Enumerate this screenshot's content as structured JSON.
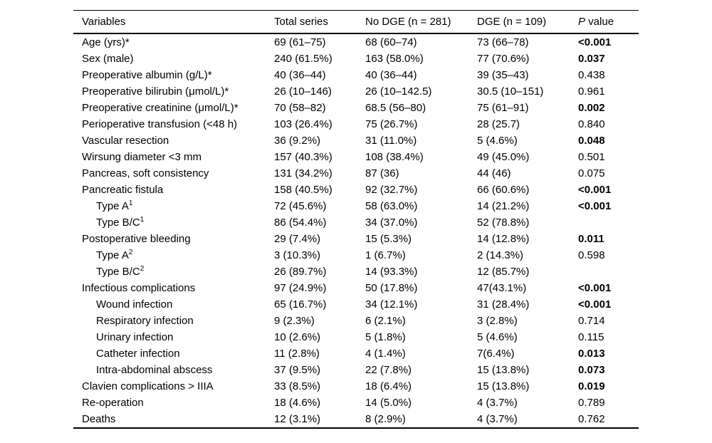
{
  "table": {
    "header": {
      "variables": "Variables",
      "total": "Total series",
      "no_dge": "No DGE (n = 281)",
      "dge": "DGE (n = 109)",
      "p_italic": "P",
      "p_rest": " value"
    },
    "rows": [
      {
        "variable": "Age (yrs)*",
        "sup": "",
        "indent": false,
        "total": "69 (61–75)",
        "no_dge": "68 (60–74)",
        "dge": "73 (66–78)",
        "p": "<0.001",
        "p_bold": true
      },
      {
        "variable": "Sex (male)",
        "sup": "",
        "indent": false,
        "total": "240 (61.5%)",
        "no_dge": "163 (58.0%)",
        "dge": "77 (70.6%)",
        "p": "0.037",
        "p_bold": true
      },
      {
        "variable": "Preoperative albumin (g/L)*",
        "sup": "",
        "indent": false,
        "total": "40 (36–44)",
        "no_dge": "40 (36–44)",
        "dge": "39 (35–43)",
        "p": "0.438",
        "p_bold": false
      },
      {
        "variable": "Preoperative bilirubin (μmol/L)*",
        "sup": "",
        "indent": false,
        "total": "26 (10–146)",
        "no_dge": "26 (10–142.5)",
        "dge": "30.5 (10–151)",
        "p": "0.961",
        "p_bold": false
      },
      {
        "variable": "Preoperative creatinine (μmol/L)*",
        "sup": "",
        "indent": false,
        "total": "70 (58–82)",
        "no_dge": "68.5 (56–80)",
        "dge": "75 (61–91)",
        "p": "0.002",
        "p_bold": true
      },
      {
        "variable": "Perioperative transfusion (<48 h)",
        "sup": "",
        "indent": false,
        "total": "103 (26.4%)",
        "no_dge": "75 (26.7%)",
        "dge": "28 (25.7)",
        "p": "0.840",
        "p_bold": false
      },
      {
        "variable": "Vascular resection",
        "sup": "",
        "indent": false,
        "total": "36 (9.2%)",
        "no_dge": "31 (11.0%)",
        "dge": "5 (4.6%)",
        "p": "0.048",
        "p_bold": true
      },
      {
        "variable": "Wirsung diameter <3 mm",
        "sup": "",
        "indent": false,
        "total": "157 (40.3%)",
        "no_dge": "108 (38.4%)",
        "dge": "49 (45.0%)",
        "p": "0.501",
        "p_bold": false
      },
      {
        "variable": "Pancreas, soft consistency",
        "sup": "",
        "indent": false,
        "total": "131 (34.2%)",
        "no_dge": "87 (36)",
        "dge": "44 (46)",
        "p": "0.075",
        "p_bold": false
      },
      {
        "variable": "Pancreatic fistula",
        "sup": "",
        "indent": false,
        "total": "158 (40.5%)",
        "no_dge": "92 (32.7%)",
        "dge": "66 (60.6%)",
        "p": "<0.001",
        "p_bold": true
      },
      {
        "variable": "Type A",
        "sup": "1",
        "indent": true,
        "total": "72 (45.6%)",
        "no_dge": "58 (63.0%)",
        "dge": "14 (21.2%)",
        "p": "<0.001",
        "p_bold": true
      },
      {
        "variable": "Type B/C",
        "sup": "1",
        "indent": true,
        "total": "86 (54.4%)",
        "no_dge": "34 (37.0%)",
        "dge": "52 (78.8%)",
        "p": "",
        "p_bold": false
      },
      {
        "variable": "Postoperative bleeding",
        "sup": "",
        "indent": false,
        "total": "29 (7.4%)",
        "no_dge": "15 (5.3%)",
        "dge": "14 (12.8%)",
        "p": "0.011",
        "p_bold": true
      },
      {
        "variable": "Type A",
        "sup": "2",
        "indent": true,
        "total": "3 (10.3%)",
        "no_dge": "1 (6.7%)",
        "dge": "2 (14.3%)",
        "p": "0.598",
        "p_bold": false
      },
      {
        "variable": "Type B/C",
        "sup": "2",
        "indent": true,
        "total": "26 (89.7%)",
        "no_dge": "14 (93.3%)",
        "dge": "12 (85.7%)",
        "p": "",
        "p_bold": false
      },
      {
        "variable": "Infectious complications",
        "sup": "",
        "indent": false,
        "total": "97 (24.9%)",
        "no_dge": "50 (17.8%)",
        "dge": "47(43.1%)",
        "p": "<0.001",
        "p_bold": true
      },
      {
        "variable": "Wound infection",
        "sup": "",
        "indent": true,
        "total": "65 (16.7%)",
        "no_dge": "34 (12.1%)",
        "dge": "31 (28.4%)",
        "p": "<0.001",
        "p_bold": true
      },
      {
        "variable": "Respiratory infection",
        "sup": "",
        "indent": true,
        "total": "9 (2.3%)",
        "no_dge": "6 (2.1%)",
        "dge": "3 (2.8%)",
        "p": "0.714",
        "p_bold": false
      },
      {
        "variable": "Urinary infection",
        "sup": "",
        "indent": true,
        "total": "10 (2.6%)",
        "no_dge": "5 (1.8%)",
        "dge": "5 (4.6%)",
        "p": "0.115",
        "p_bold": false
      },
      {
        "variable": "Catheter infection",
        "sup": "",
        "indent": true,
        "total": "11 (2.8%)",
        "no_dge": "4 (1.4%)",
        "dge": "7(6.4%)",
        "p": "0.013",
        "p_bold": true
      },
      {
        "variable": "Intra-abdominal abscess",
        "sup": "",
        "indent": true,
        "total": "37 (9.5%)",
        "no_dge": "22 (7.8%)",
        "dge": "15 (13.8%)",
        "p": "0.073",
        "p_bold": true
      },
      {
        "variable": "Clavien complications > IIIA",
        "sup": "",
        "indent": false,
        "total": "33 (8.5%)",
        "no_dge": "18 (6.4%)",
        "dge": "15 (13.8%)",
        "p": "0.019",
        "p_bold": true
      },
      {
        "variable": "Re-operation",
        "sup": "",
        "indent": false,
        "total": "18 (4.6%)",
        "no_dge": "14 (5.0%)",
        "dge": "4 (3.7%)",
        "p": "0.789",
        "p_bold": false
      },
      {
        "variable": "Deaths",
        "sup": "",
        "indent": false,
        "total": "12 (3.1%)",
        "no_dge": "8 (2.9%)",
        "dge": "4 (3.7%)",
        "p": "0.762",
        "p_bold": false
      }
    ]
  }
}
